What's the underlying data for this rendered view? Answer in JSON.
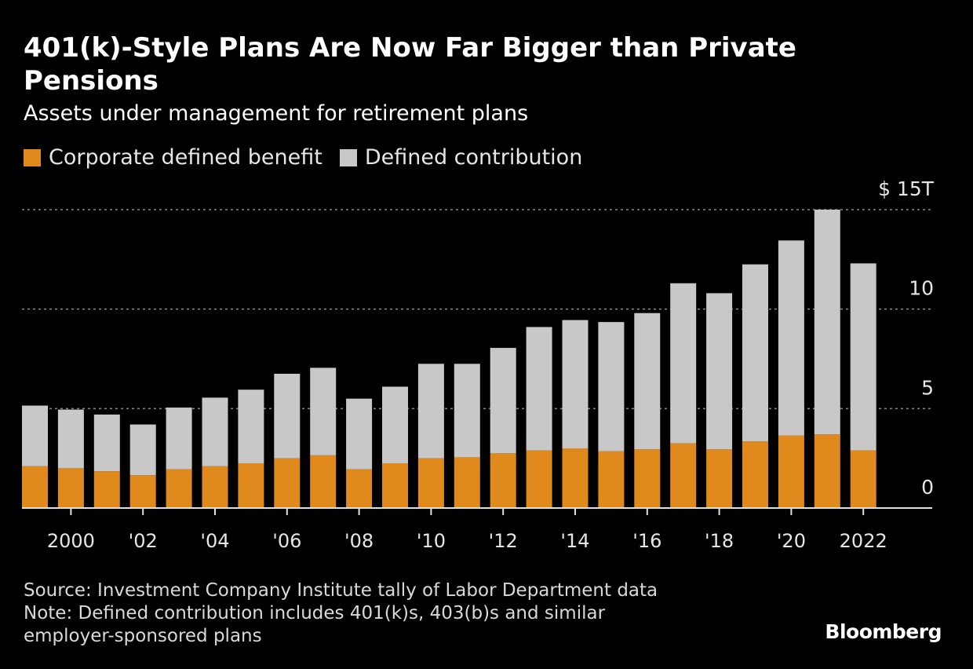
{
  "header": {
    "title": "401(k)-Style Plans Are Now Far Bigger than Private Pensions",
    "subtitle": "Assets under management for retirement plans"
  },
  "legend": {
    "items": [
      {
        "label": "Corporate defined benefit",
        "color": "#e08a1e"
      },
      {
        "label": "Defined contribution",
        "color": "#c8c8c8"
      }
    ]
  },
  "chart_data": {
    "type": "bar",
    "stacked": true,
    "title": "401(k)-Style Plans Are Now Far Bigger than Private Pensions",
    "subtitle": "Assets under management for retirement plans",
    "unit": "trillions of US dollars",
    "x": [
      1999,
      2000,
      2001,
      2002,
      2003,
      2004,
      2005,
      2006,
      2007,
      2008,
      2009,
      2010,
      2011,
      2012,
      2013,
      2014,
      2015,
      2016,
      2017,
      2018,
      2019,
      2020,
      2021,
      2022
    ],
    "series": [
      {
        "name": "Corporate defined benefit",
        "color": "#e08a1e",
        "values": [
          2.1,
          2.0,
          1.85,
          1.65,
          1.95,
          2.1,
          2.25,
          2.5,
          2.65,
          1.95,
          2.25,
          2.5,
          2.55,
          2.75,
          2.9,
          3.0,
          2.85,
          2.95,
          3.25,
          2.95,
          3.35,
          3.65,
          3.7,
          2.9
        ]
      },
      {
        "name": "Defined contribution",
        "color": "#c8c8c8",
        "values": [
          3.05,
          2.95,
          2.85,
          2.55,
          3.1,
          3.45,
          3.7,
          4.25,
          4.4,
          3.55,
          3.85,
          4.75,
          4.7,
          5.3,
          6.2,
          6.45,
          6.5,
          6.85,
          8.05,
          7.85,
          8.9,
          9.8,
          11.3,
          9.4
        ]
      }
    ],
    "x_tick_labels": [
      {
        "value": 2000,
        "label": "2000"
      },
      {
        "value": 2002,
        "label": "'02"
      },
      {
        "value": 2004,
        "label": "'04"
      },
      {
        "value": 2006,
        "label": "'06"
      },
      {
        "value": 2008,
        "label": "'08"
      },
      {
        "value": 2010,
        "label": "'10"
      },
      {
        "value": 2012,
        "label": "'12"
      },
      {
        "value": 2014,
        "label": "'14"
      },
      {
        "value": 2016,
        "label": "'16"
      },
      {
        "value": 2018,
        "label": "'18"
      },
      {
        "value": 2020,
        "label": "'20"
      },
      {
        "value": 2022,
        "label": "2022"
      }
    ],
    "y_ticks": [
      {
        "value": 0,
        "label": "0"
      },
      {
        "value": 5,
        "label": "5"
      },
      {
        "value": 10,
        "label": "10"
      },
      {
        "value": 15,
        "label": "$ 15T"
      }
    ],
    "ylim": [
      0,
      15
    ],
    "grid": true,
    "legend_position": "top-left",
    "axis_position": "right"
  },
  "footer": {
    "source": "Source: Investment Company Institute tally of Labor Department data",
    "note_line1": "Note: Defined contribution includes 401(k)s, 403(b)s and similar",
    "note_line2": "employer-sponsored plans"
  },
  "brand": "Bloomberg"
}
